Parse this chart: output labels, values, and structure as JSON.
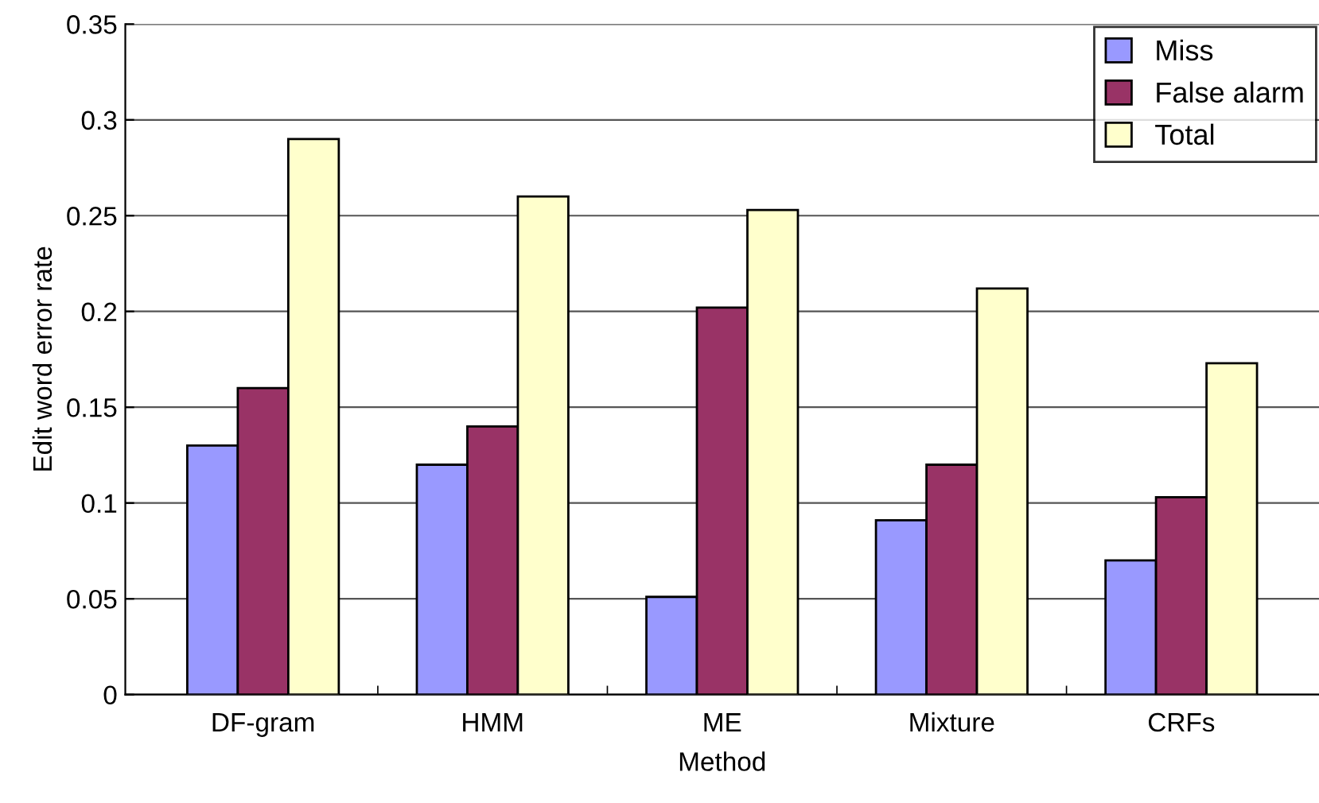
{
  "chart_data": {
    "type": "bar",
    "xlabel": "Method",
    "ylabel": "Edit word error rate",
    "categories": [
      "DF-gram",
      "HMM",
      "ME",
      "Mixture",
      "CRFs"
    ],
    "series": [
      {
        "name": "Miss",
        "color": "#9999ff",
        "values": [
          0.13,
          0.12,
          0.051,
          0.091,
          0.07
        ]
      },
      {
        "name": "False alarm",
        "color": "#993366",
        "values": [
          0.16,
          0.14,
          0.202,
          0.12,
          0.103
        ]
      },
      {
        "name": "Total",
        "color": "#ffffcc",
        "values": [
          0.29,
          0.26,
          0.253,
          0.212,
          0.173
        ]
      }
    ],
    "ylim": [
      0,
      0.35
    ],
    "yticks": [
      {
        "value": 0,
        "label": "0"
      },
      0.05,
      {
        "value": 0.1,
        "label": "0.1"
      },
      0.15,
      {
        "value": 0.2,
        "label": "0.2"
      },
      0.25,
      {
        "value": 0.3,
        "label": "0.3"
      },
      0.35
    ],
    "grid": "y",
    "legend": "top right"
  }
}
